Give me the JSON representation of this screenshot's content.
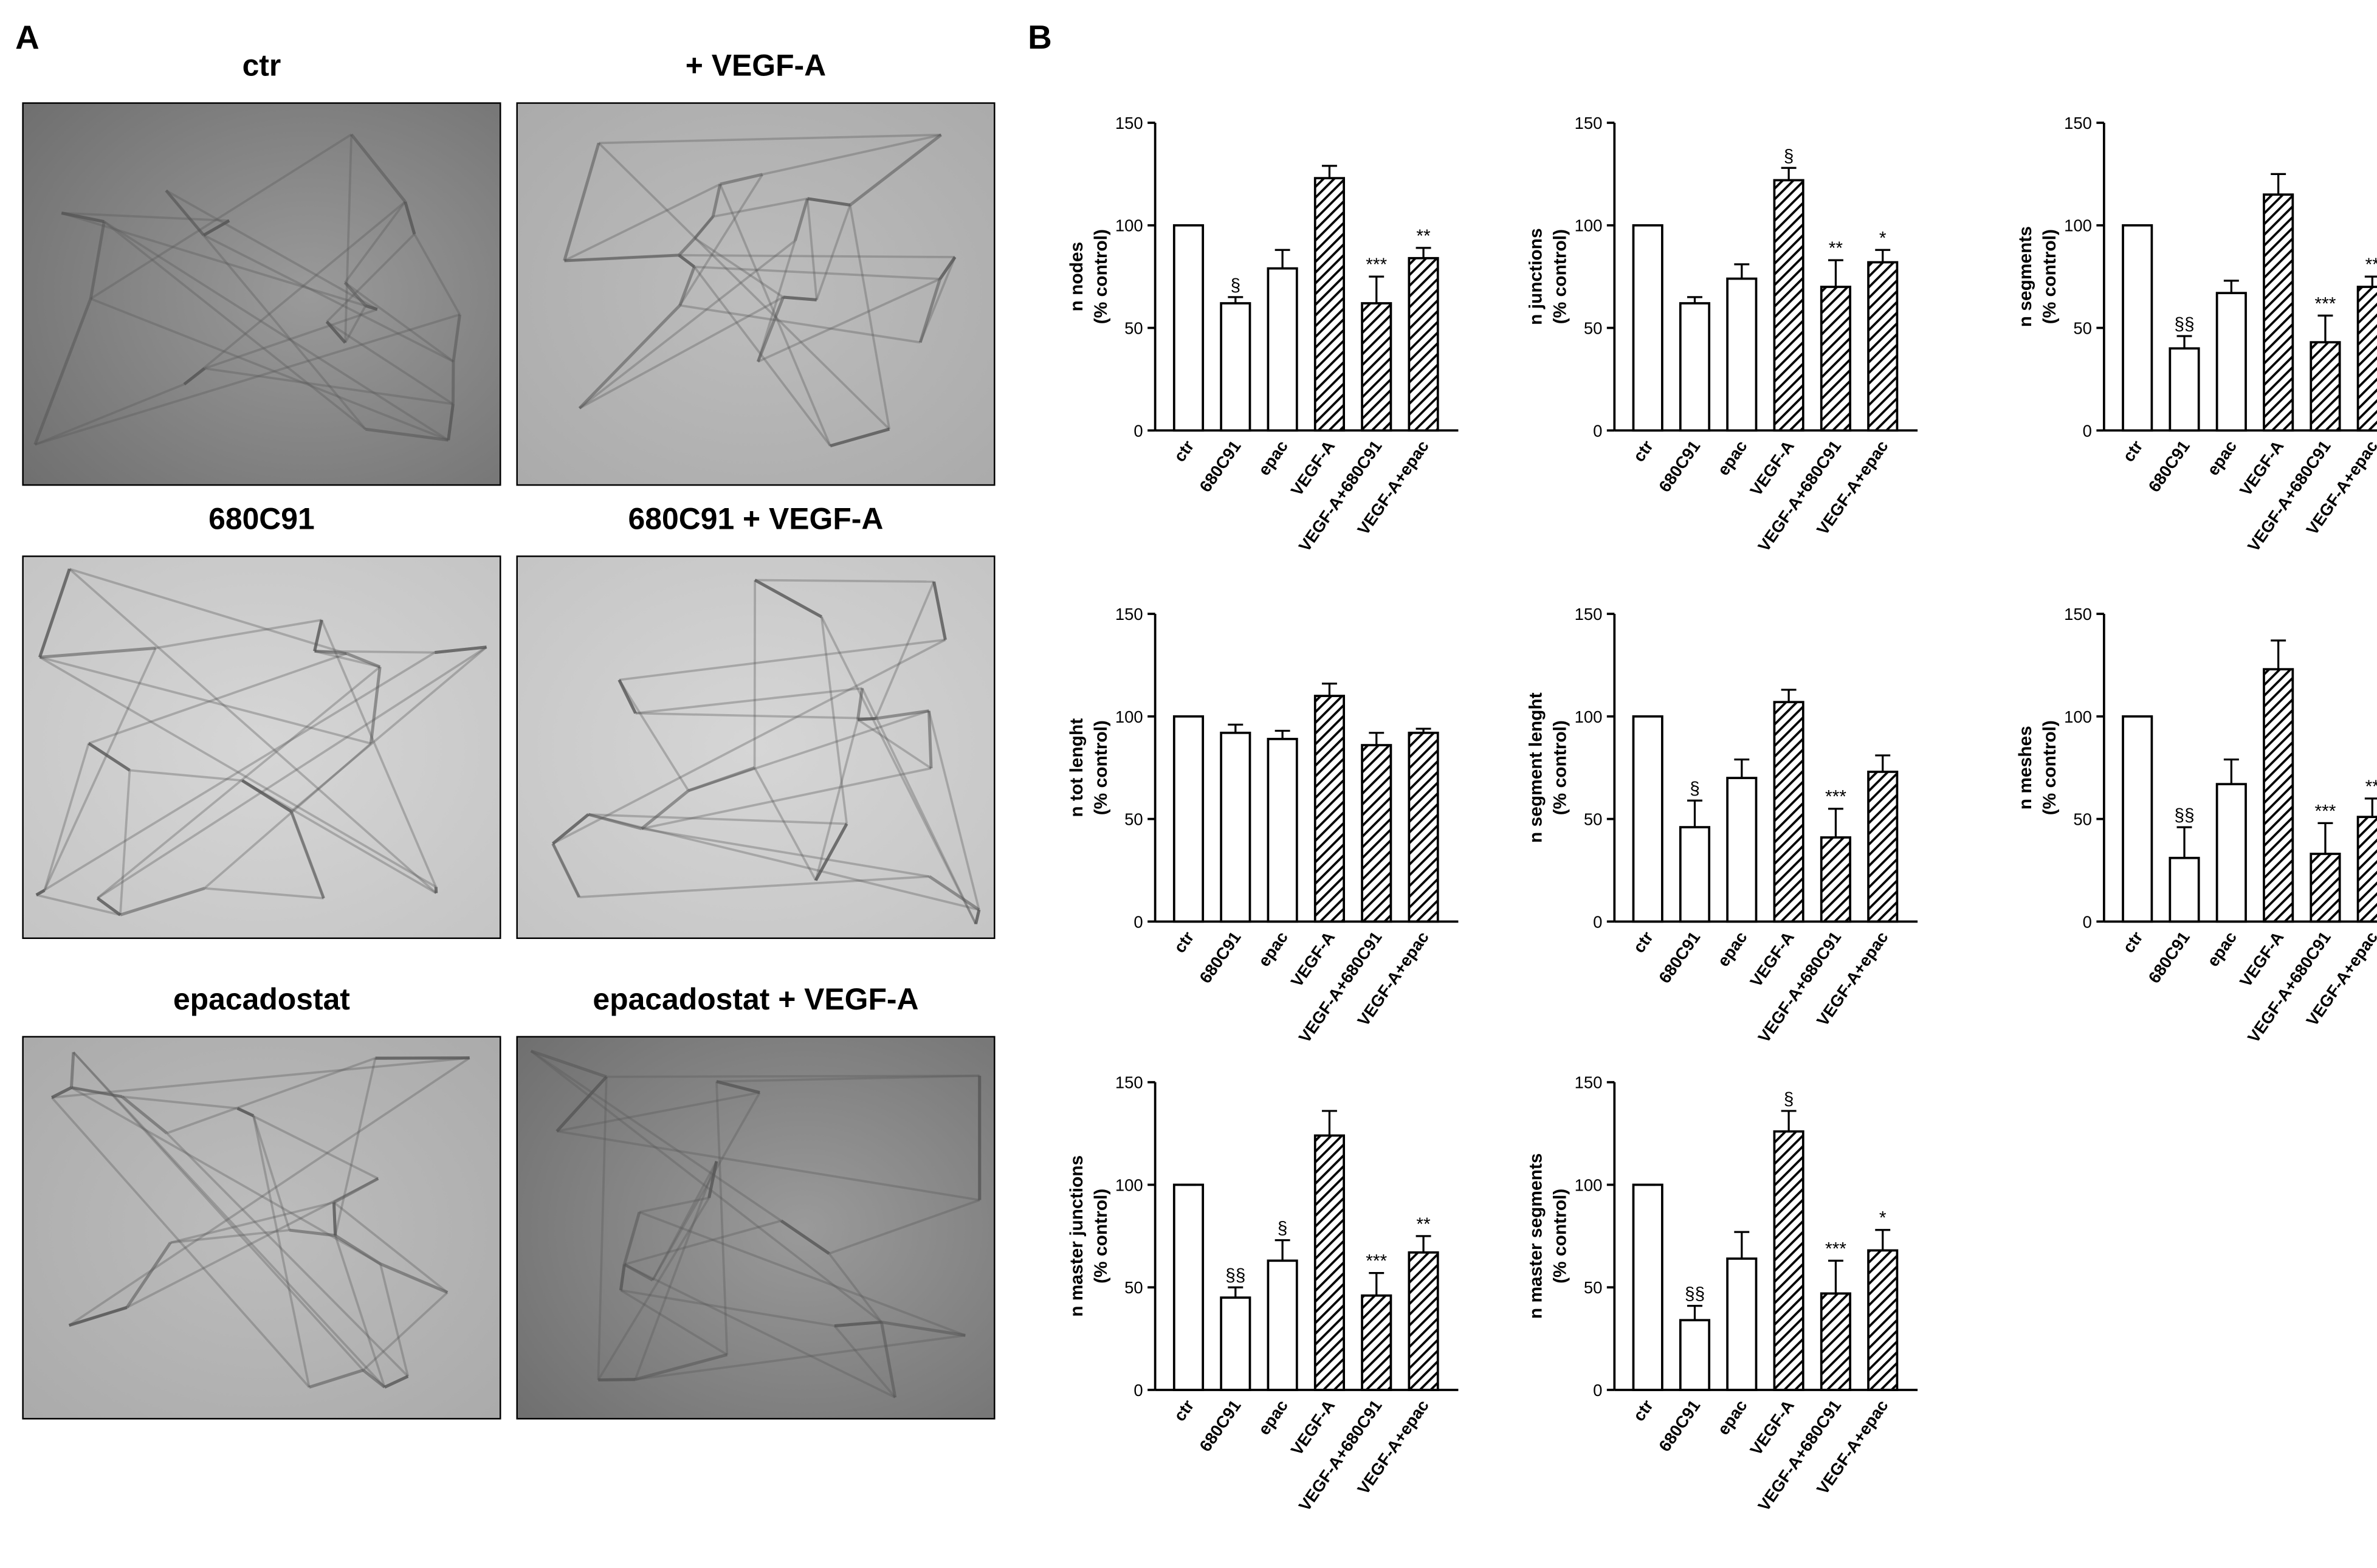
{
  "panels": {
    "a": "A",
    "b": "B"
  },
  "images": [
    {
      "title": "ctr"
    },
    {
      "title": "+ VEGF-A"
    },
    {
      "title": "680C91"
    },
    {
      "title": "680C91 +  VEGF-A"
    },
    {
      "title": "epacadostat"
    },
    {
      "title": "epacadostat + VEGF-A"
    }
  ],
  "chart_data": [
    {
      "type": "bar",
      "ylabel": [
        "n nodes",
        "(% control)"
      ],
      "categories": [
        "ctr",
        "680C91",
        "epac",
        "VEGF-A",
        "VEGF-A+680C91",
        "VEGF-A+epac"
      ],
      "values": [
        100,
        62,
        79,
        123,
        62,
        84
      ],
      "errors": [
        0,
        3,
        9,
        6,
        13,
        5
      ],
      "annotations": [
        null,
        "§",
        null,
        null,
        "***",
        "**"
      ],
      "hatched": [
        false,
        false,
        false,
        true,
        true,
        true
      ],
      "color": "#000000",
      "ylim": [
        0,
        150
      ],
      "yticks": [
        0,
        50,
        100,
        150
      ]
    },
    {
      "type": "bar",
      "ylabel": [
        "n junctions",
        "(% control)"
      ],
      "categories": [
        "ctr",
        "680C91",
        "epac",
        "VEGF-A",
        "VEGF-A+680C91",
        "VEGF-A+epac"
      ],
      "values": [
        100,
        62,
        74,
        122,
        70,
        82
      ],
      "errors": [
        0,
        3,
        7,
        6,
        13,
        6
      ],
      "annotations": [
        null,
        null,
        null,
        "§",
        "**",
        "*"
      ],
      "hatched": [
        false,
        false,
        false,
        true,
        true,
        true
      ],
      "color": "#000000",
      "ylim": [
        0,
        150
      ],
      "yticks": [
        0,
        50,
        100,
        150
      ]
    },
    {
      "type": "bar",
      "ylabel": [
        "n segments",
        "(% control)"
      ],
      "categories": [
        "ctr",
        "680C91",
        "epac",
        "VEGF-A",
        "VEGF-A+680C91",
        "VEGF-A+epac"
      ],
      "values": [
        100,
        40,
        67,
        115,
        43,
        70
      ],
      "errors": [
        0,
        6,
        6,
        10,
        13,
        5
      ],
      "annotations": [
        null,
        "§§",
        null,
        null,
        "***",
        "**"
      ],
      "hatched": [
        false,
        false,
        false,
        true,
        true,
        true
      ],
      "color": "#000000",
      "ylim": [
        0,
        150
      ],
      "yticks": [
        0,
        50,
        100,
        150
      ]
    },
    {
      "type": "bar",
      "ylabel": [
        "n tot lenght",
        "(% control)"
      ],
      "categories": [
        "ctr",
        "680C91",
        "epac",
        "VEGF-A",
        "VEGF-A+680C91",
        "VEGF-A+epac"
      ],
      "values": [
        100,
        92,
        89,
        110,
        86,
        92
      ],
      "errors": [
        0,
        4,
        4,
        6,
        6,
        2
      ],
      "annotations": [
        null,
        null,
        null,
        null,
        null,
        null
      ],
      "hatched": [
        false,
        false,
        false,
        true,
        true,
        true
      ],
      "color": "#000000",
      "ylim": [
        0,
        150
      ],
      "yticks": [
        0,
        50,
        100,
        150
      ]
    },
    {
      "type": "bar",
      "ylabel": [
        "n segment lenght",
        "(% control)"
      ],
      "categories": [
        "ctr",
        "680C91",
        "epac",
        "VEGF-A",
        "VEGF-A+680C91",
        "VEGF-A+epac"
      ],
      "values": [
        100,
        46,
        70,
        107,
        41,
        73
      ],
      "errors": [
        0,
        13,
        9,
        6,
        14,
        8
      ],
      "annotations": [
        null,
        "§",
        null,
        null,
        "***",
        null
      ],
      "hatched": [
        false,
        false,
        false,
        true,
        true,
        true
      ],
      "color": "#000000",
      "ylim": [
        0,
        150
      ],
      "yticks": [
        0,
        50,
        100,
        150
      ]
    },
    {
      "type": "bar",
      "ylabel": [
        "n meshes",
        "(% control)"
      ],
      "categories": [
        "ctr",
        "680C91",
        "epac",
        "VEGF-A",
        "VEGF-A+680C91",
        "VEGF-A+epac"
      ],
      "values": [
        100,
        31,
        67,
        123,
        33,
        51
      ],
      "errors": [
        0,
        15,
        12,
        14,
        15,
        9
      ],
      "annotations": [
        null,
        "§§",
        null,
        null,
        "***",
        "**"
      ],
      "hatched": [
        false,
        false,
        false,
        true,
        true,
        true
      ],
      "color": "#000000",
      "ylim": [
        0,
        150
      ],
      "yticks": [
        0,
        50,
        100,
        150
      ]
    },
    {
      "type": "bar",
      "ylabel": [
        "n master junctions",
        "(% control)"
      ],
      "categories": [
        "ctr",
        "680C91",
        "epac",
        "VEGF-A",
        "VEGF-A+680C91",
        "VEGF-A+epac"
      ],
      "values": [
        100,
        45,
        63,
        124,
        46,
        67
      ],
      "errors": [
        0,
        5,
        10,
        12,
        11,
        8
      ],
      "annotations": [
        null,
        "§§",
        "§",
        null,
        "***",
        "**"
      ],
      "hatched": [
        false,
        false,
        false,
        true,
        true,
        true
      ],
      "color": "#000000",
      "ylim": [
        0,
        150
      ],
      "yticks": [
        0,
        50,
        100,
        150
      ]
    },
    {
      "type": "bar",
      "ylabel": [
        "n master segments",
        "(% control)"
      ],
      "categories": [
        "ctr",
        "680C91",
        "epac",
        "VEGF-A",
        "VEGF-A+680C91",
        "VEGF-A+epac"
      ],
      "values": [
        100,
        34,
        64,
        126,
        47,
        68
      ],
      "errors": [
        0,
        7,
        13,
        10,
        16,
        10
      ],
      "annotations": [
        null,
        "§§",
        null,
        "§",
        "***",
        "*"
      ],
      "hatched": [
        false,
        false,
        false,
        true,
        true,
        true
      ],
      "color": "#000000",
      "ylim": [
        0,
        150
      ],
      "yticks": [
        0,
        50,
        100,
        150
      ]
    }
  ]
}
